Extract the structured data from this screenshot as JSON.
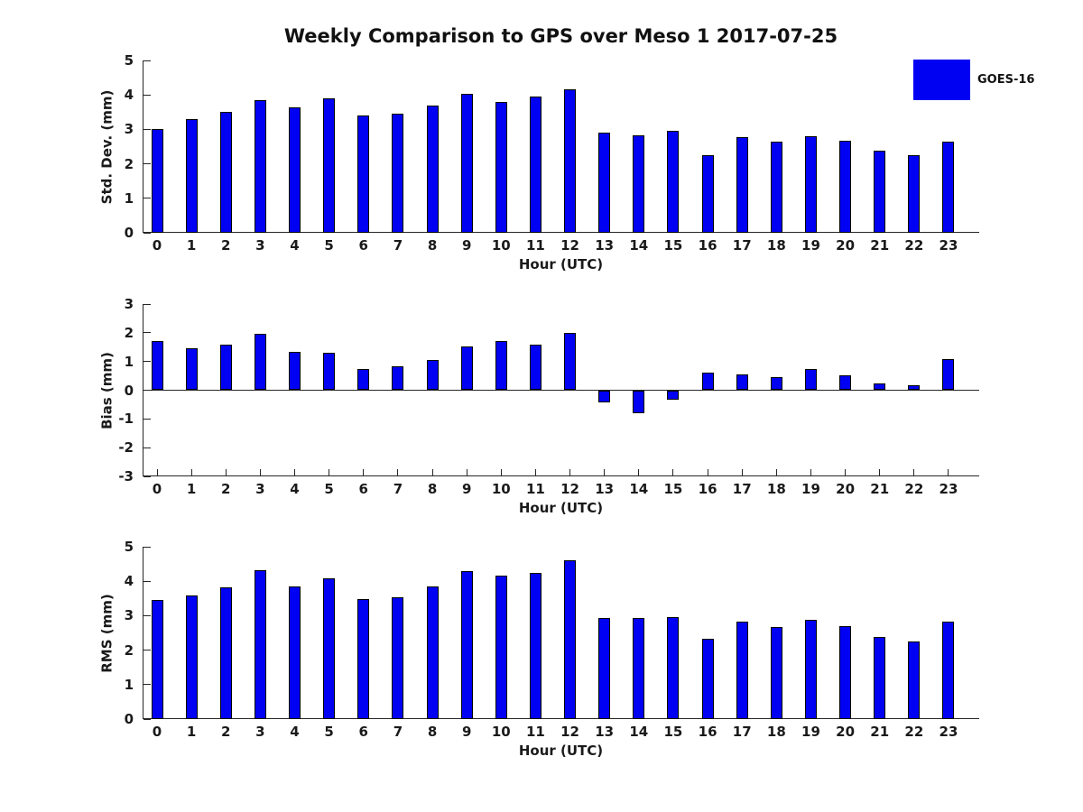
{
  "title": "Weekly Comparison to GPS over Meso 1 2017-07-25",
  "legend": {
    "label": "GOES-16",
    "color": "#0000F2"
  },
  "colors": {
    "bar": "#0000F2",
    "bar_edge": "#000000",
    "axis": "#262626",
    "text": "#1a1a1a",
    "background": "#ffffff"
  },
  "chart_data": [
    {
      "type": "bar",
      "name": "std-dev",
      "ylabel": "Std. Dev. (mm)",
      "xlabel": "Hour (UTC)",
      "ylim": [
        0,
        5
      ],
      "yticks": [
        0,
        1,
        2,
        3,
        4,
        5
      ],
      "grid": false,
      "categories": [
        "0",
        "1",
        "2",
        "3",
        "4",
        "5",
        "6",
        "7",
        "8",
        "9",
        "10",
        "11",
        "12",
        "13",
        "14",
        "15",
        "16",
        "17",
        "18",
        "19",
        "20",
        "21",
        "22",
        "23"
      ],
      "values": [
        3.01,
        3.3,
        3.5,
        3.85,
        3.64,
        3.9,
        3.41,
        3.45,
        3.68,
        4.02,
        3.8,
        3.95,
        4.16,
        2.9,
        2.82,
        2.96,
        2.25,
        2.77,
        2.64,
        2.8,
        2.67,
        2.38,
        2.26,
        2.65
      ]
    },
    {
      "type": "bar",
      "name": "bias",
      "ylabel": "Bias (mm)",
      "xlabel": "Hour (UTC)",
      "ylim": [
        -3,
        3
      ],
      "yticks": [
        -3,
        -2,
        -1,
        0,
        1,
        2,
        3
      ],
      "grid": false,
      "x_tick_marks": true,
      "categories": [
        "0",
        "1",
        "2",
        "3",
        "4",
        "5",
        "6",
        "7",
        "8",
        "9",
        "10",
        "11",
        "12",
        "13",
        "14",
        "15",
        "16",
        "17",
        "18",
        "19",
        "20",
        "21",
        "22",
        "23"
      ],
      "values": [
        1.72,
        1.45,
        1.6,
        1.97,
        1.32,
        1.3,
        0.73,
        0.82,
        1.06,
        1.53,
        1.72,
        1.6,
        2.0,
        -0.42,
        -0.8,
        -0.34,
        0.6,
        0.56,
        0.45,
        0.74,
        0.53,
        0.23,
        0.18,
        1.09
      ]
    },
    {
      "type": "bar",
      "name": "rms",
      "ylabel": "RMS (mm)",
      "xlabel": "Hour (UTC)",
      "ylim": [
        0,
        5
      ],
      "yticks": [
        0,
        1,
        2,
        3,
        4,
        5
      ],
      "grid": false,
      "categories": [
        "0",
        "1",
        "2",
        "3",
        "4",
        "5",
        "6",
        "7",
        "8",
        "9",
        "10",
        "11",
        "12",
        "13",
        "14",
        "15",
        "16",
        "17",
        "18",
        "19",
        "20",
        "21",
        "22",
        "23"
      ],
      "values": [
        3.45,
        3.58,
        3.82,
        4.32,
        3.85,
        4.08,
        3.48,
        3.53,
        3.84,
        4.29,
        4.16,
        4.25,
        4.6,
        2.92,
        2.92,
        2.95,
        2.33,
        2.82,
        2.67,
        2.87,
        2.69,
        2.37,
        2.24,
        2.84
      ]
    }
  ]
}
